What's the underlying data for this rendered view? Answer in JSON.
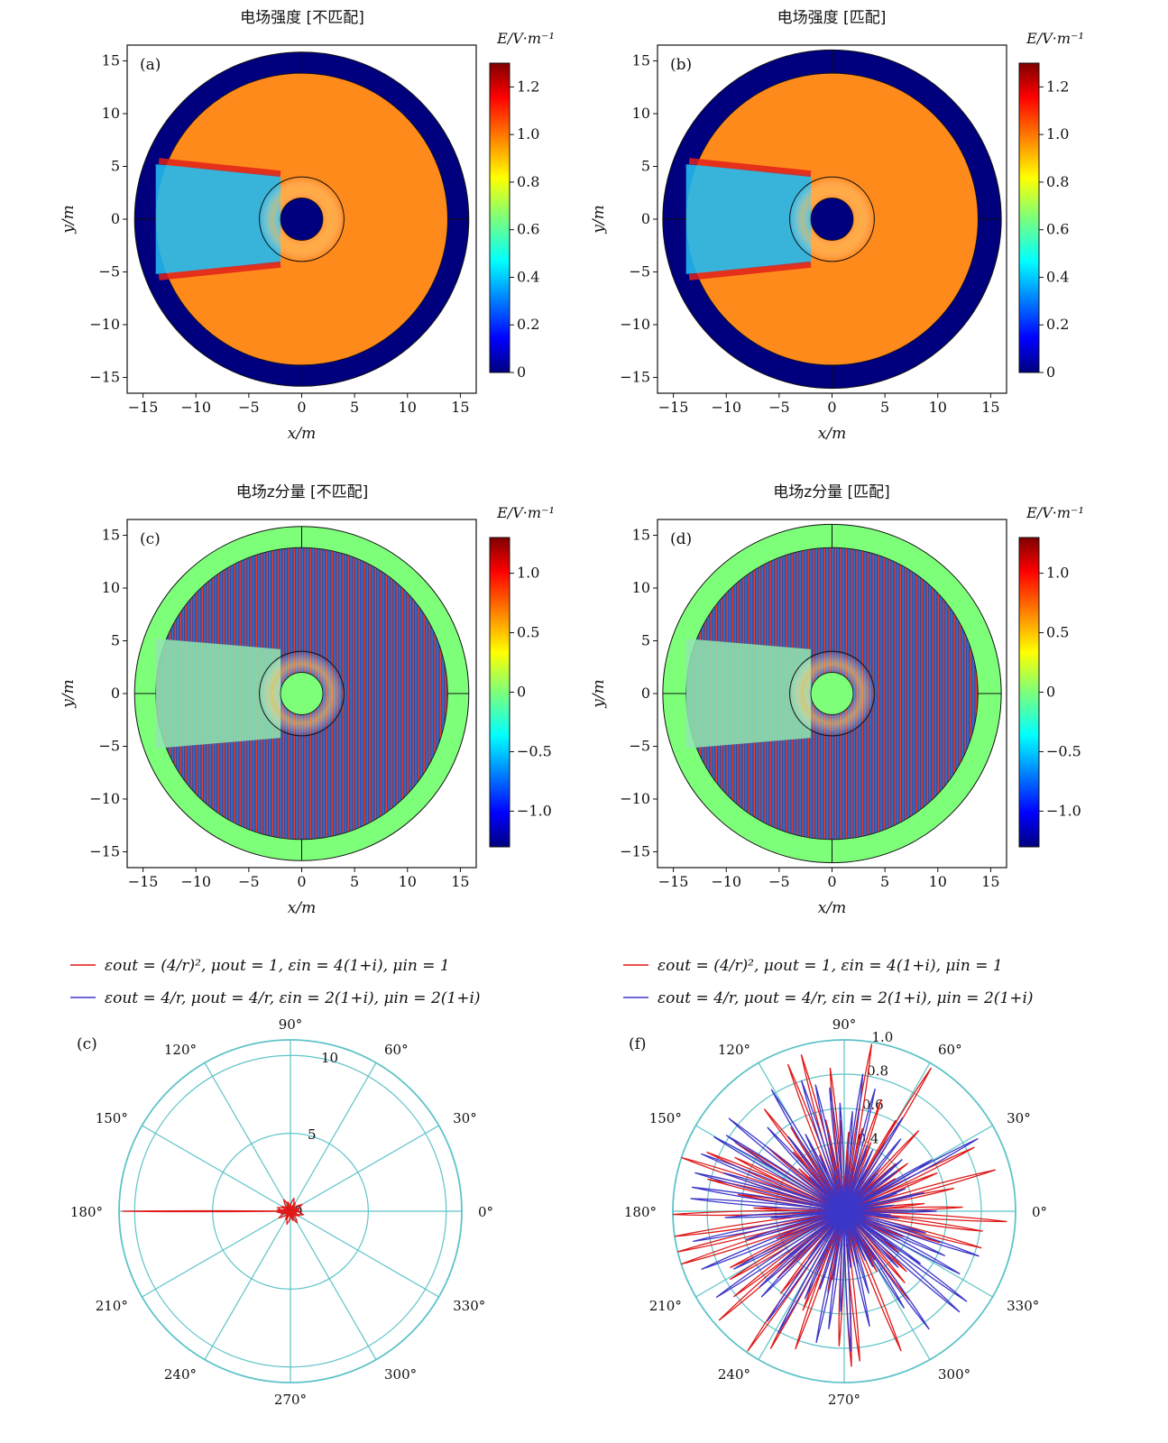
{
  "maps": [
    {
      "id": "a",
      "panel_label": "(a)",
      "title": "电场强度 [不匹配]",
      "type": "intensity",
      "xlabel": "x/m",
      "ylabel": "y/m",
      "xticks": [
        -15,
        -10,
        -5,
        0,
        5,
        10,
        15
      ],
      "yticks": [
        15,
        10,
        5,
        0,
        -5,
        -10,
        -15
      ],
      "xlim": [
        -16.5,
        16.5
      ],
      "ylim": [
        -16.5,
        16.5
      ],
      "shell_outer_r": 15.8,
      "inner_region_r": 13.8,
      "cloak_r": 4.0,
      "core_r": 2.0,
      "colorbar": {
        "label": "E/V·m⁻¹",
        "range": [
          0,
          1.3
        ],
        "ticks": [
          {
            "v": 0,
            "t": "0"
          },
          {
            "v": 0.2,
            "t": "0.2"
          },
          {
            "v": 0.4,
            "t": "0.4"
          },
          {
            "v": 0.6,
            "t": "0.6"
          },
          {
            "v": 0.8,
            "t": "0.8"
          },
          {
            "v": 1.0,
            "t": "1.0"
          },
          {
            "v": 1.2,
            "t": "1.2"
          }
        ]
      }
    },
    {
      "id": "b",
      "panel_label": "(b)",
      "title": "电场强度 [匹配]",
      "type": "intensity",
      "xlabel": "x/m",
      "ylabel": "y/m",
      "xticks": [
        -15,
        -10,
        -5,
        0,
        5,
        10,
        15
      ],
      "yticks": [
        15,
        10,
        5,
        0,
        -5,
        -10,
        -15
      ],
      "xlim": [
        -16.5,
        16.5
      ],
      "ylim": [
        -16.5,
        16.5
      ],
      "shell_outer_r": 16.0,
      "inner_region_r": 13.8,
      "cloak_r": 4.0,
      "core_r": 2.0,
      "colorbar": {
        "label": "E/V·m⁻¹",
        "range": [
          0,
          1.3
        ],
        "ticks": [
          {
            "v": 0,
            "t": "0"
          },
          {
            "v": 0.2,
            "t": "0.2"
          },
          {
            "v": 0.4,
            "t": "0.4"
          },
          {
            "v": 0.6,
            "t": "0.6"
          },
          {
            "v": 0.8,
            "t": "0.8"
          },
          {
            "v": 1.0,
            "t": "1.0"
          },
          {
            "v": 1.2,
            "t": "1.2"
          }
        ]
      }
    },
    {
      "id": "c",
      "panel_label": "(c)",
      "title": "电场z分量 [不匹配]",
      "type": "component",
      "xlabel": "x/m",
      "ylabel": "y/m",
      "xticks": [
        -15,
        -10,
        -5,
        0,
        5,
        10,
        15
      ],
      "yticks": [
        15,
        10,
        5,
        0,
        -5,
        -10,
        -15
      ],
      "xlim": [
        -16.5,
        16.5
      ],
      "ylim": [
        -16.5,
        16.5
      ],
      "shell_outer_r": 15.8,
      "inner_region_r": 13.8,
      "cloak_r": 4.0,
      "core_r": 2.0,
      "colorbar": {
        "label": "E/V·m⁻¹",
        "range": [
          -1.3,
          1.3
        ],
        "ticks": [
          {
            "v": -1.0,
            "t": "−1.0"
          },
          {
            "v": -0.5,
            "t": "−0.5"
          },
          {
            "v": 0,
            "t": "0"
          },
          {
            "v": 0.5,
            "t": "0.5"
          },
          {
            "v": 1.0,
            "t": "1.0"
          }
        ]
      }
    },
    {
      "id": "d",
      "panel_label": "(d)",
      "title": "电场z分量 [匹配]",
      "type": "component",
      "xlabel": "x/m",
      "ylabel": "y/m",
      "xticks": [
        -15,
        -10,
        -5,
        0,
        5,
        10,
        15
      ],
      "yticks": [
        15,
        10,
        5,
        0,
        -5,
        -10,
        -15
      ],
      "xlim": [
        -16.5,
        16.5
      ],
      "ylim": [
        -16.5,
        16.5
      ],
      "shell_outer_r": 16.0,
      "inner_region_r": 13.8,
      "cloak_r": 4.0,
      "core_r": 2.0,
      "colorbar": {
        "label": "E/V·m⁻¹",
        "range": [
          -1.3,
          1.3
        ],
        "ticks": [
          {
            "v": -1.0,
            "t": "−1.0"
          },
          {
            "v": -0.5,
            "t": "−0.5"
          },
          {
            "v": 0,
            "t": "0"
          },
          {
            "v": 0.5,
            "t": "0.5"
          },
          {
            "v": 1.0,
            "t": "1.0"
          }
        ]
      }
    }
  ],
  "legend": {
    "entries": [
      {
        "color": "#e01818",
        "text": "εout = (4/r)², μout = 1, εin = 4(1+i), μin = 1"
      },
      {
        "color": "#3b36c8",
        "text": "εout = 4/r, μout = 4/r, εin = 2(1+i), μin = 2(1+i)"
      }
    ]
  },
  "chart_data": [
    {
      "type": "polar",
      "panel_label": "(c)",
      "rlim": [
        0,
        11
      ],
      "r_rings": [
        5,
        10,
        11
      ],
      "r_tick_labels": [
        "0",
        "5",
        "10"
      ],
      "angle_labels": [
        "0°",
        "30°",
        "60°",
        "90°",
        "120°",
        "150°",
        "180°",
        "210°",
        "240°",
        "270°",
        "300°",
        "330°"
      ],
      "series": [
        {
          "name": "εout = (4/r)², μout = 1, εin = 4(1+i), μin = 1",
          "color": "#e01818",
          "lobes": [
            [
              180,
              10.8
            ],
            [
              175,
              0.8
            ],
            [
              185,
              0.8
            ],
            [
              0,
              0.6
            ],
            [
              60,
              0.4
            ],
            [
              120,
              0.4
            ],
            [
              240,
              0.4
            ],
            [
              300,
              0.4
            ]
          ]
        },
        {
          "name": "εout = 4/r, μout = 4/r, εin = 2(1+i), μin = 2(1+i)",
          "color": "#3b36c8",
          "lobes": [
            [
              180,
              0.5
            ],
            [
              0,
              0.4
            ]
          ]
        }
      ]
    },
    {
      "type": "polar",
      "panel_label": "(f)",
      "rlim": [
        0,
        1.0
      ],
      "r_rings": [
        0.2,
        0.4,
        0.6,
        0.8,
        1.0
      ],
      "r_tick_labels": [
        "0.4",
        "0.6",
        "0.8",
        "1.0"
      ],
      "angle_labels": [
        "0°",
        "30°",
        "60°",
        "90°",
        "120°",
        "150°",
        "180°",
        "210°",
        "240°",
        "270°",
        "300°",
        "330°"
      ],
      "series": [
        {
          "name": "εout = (4/r)², μout = 1, εin = 4(1+i), μin = 1",
          "color": "#e01818",
          "lobes_count": 72,
          "max_r": 1.0
        },
        {
          "name": "εout = 4/r, μout = 4/r, εin = 2(1+i), μin = 2(1+i)",
          "color": "#3b36c8",
          "lobes_count": 72,
          "max_r": 0.9
        }
      ]
    }
  ]
}
